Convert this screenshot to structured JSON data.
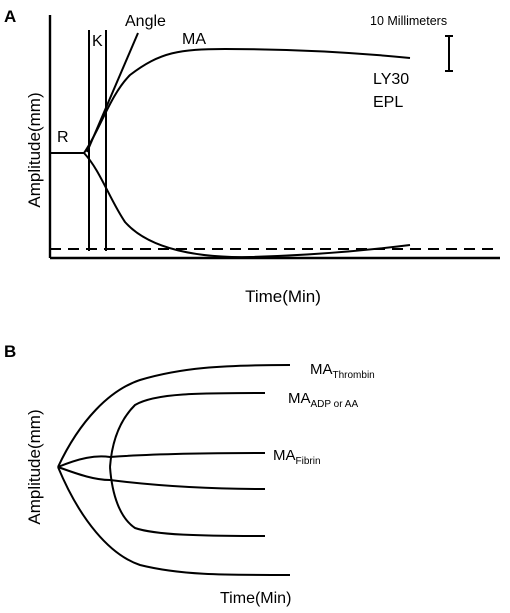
{
  "panel_a": {
    "letter": "A",
    "y_label": "Amplitude(mm)",
    "x_label": "Time(Min)",
    "labels": {
      "r": "R",
      "k": "K",
      "angle": "Angle",
      "ma": "MA",
      "scale": "10 Millimeters",
      "ly30": "LY30",
      "epl": "EPL"
    }
  },
  "panel_b": {
    "letter": "B",
    "y_label": "Amplitude(mm)",
    "x_label": "Time(Min)",
    "labels": {
      "ma_thrombin_main": "MA",
      "ma_thrombin_sub": "Thrombin",
      "ma_adp_main": "MA",
      "ma_adp_sub": "ADP or AA",
      "ma_fibrin_main": "MA",
      "ma_fibrin_sub": "Fibrin"
    }
  }
}
